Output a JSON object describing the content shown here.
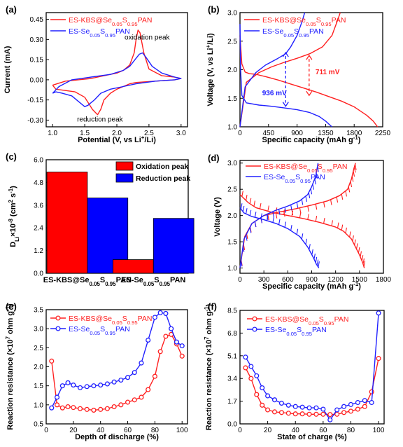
{
  "chart_data": [
    {
      "type": "line",
      "panel": "(a)",
      "xlabel_main": "Potential (V, vs Li",
      "xlabel_sup": "+",
      "xlabel_tail": "/Li)",
      "ylabel": "Current (mA)",
      "xlim": [
        0.9,
        3.1
      ],
      "ylim": [
        -0.35,
        0.5
      ],
      "xticks": [
        "1.0",
        "1.5",
        "2.0",
        "2.5",
        "3.0"
      ],
      "xtick_vals": [
        1.0,
        1.5,
        2.0,
        2.5,
        3.0
      ],
      "yticks": [
        "-0.30",
        "-0.15",
        "0.00",
        "0.15",
        "0.30",
        "0.45"
      ],
      "ytick_vals": [
        -0.3,
        -0.15,
        0.0,
        0.15,
        0.3,
        0.45
      ],
      "legend_position": "top-left",
      "annotations": {
        "oxidation": "oxidation peak",
        "reduction": "reduction peak"
      },
      "series": [
        {
          "name": "ES-KBS@Se0.05S0.95PAN",
          "label_main": "ES-KBS@Se",
          "sub1": "0.05",
          "mid": "S",
          "sub2": "0.95",
          "tail": "PAN",
          "color": "#ff2020",
          "x": [
            1.0,
            1.2,
            1.4,
            1.6,
            1.8,
            2.0,
            2.1,
            2.2,
            2.27,
            2.3,
            2.33,
            2.36,
            2.42,
            2.5,
            2.7,
            2.9,
            3.0,
            2.9,
            2.6,
            2.3,
            2.2,
            2.1,
            2.0,
            1.9,
            1.8,
            1.75,
            1.7,
            1.62,
            1.5,
            1.35,
            1.2,
            1.05,
            1.0
          ],
          "y": [
            -0.04,
            -0.01,
            0.0,
            0.01,
            0.03,
            0.05,
            0.07,
            0.11,
            0.2,
            0.3,
            0.37,
            0.35,
            0.2,
            0.08,
            0.03,
            0.02,
            0.01,
            0.0,
            -0.01,
            -0.02,
            -0.03,
            -0.05,
            -0.07,
            -0.1,
            -0.15,
            -0.22,
            -0.26,
            -0.22,
            -0.13,
            -0.09,
            -0.08,
            -0.07,
            -0.04
          ]
        },
        {
          "name": "ES-Se0.05S0.95PAN",
          "label_main": "ES-Se",
          "sub1": "0.05",
          "mid": "S",
          "sub2": "0.95",
          "tail": "PAN",
          "color": "#2020ff",
          "x": [
            1.0,
            1.1,
            1.3,
            1.6,
            1.9,
            2.1,
            2.2,
            2.3,
            2.35,
            2.4,
            2.45,
            2.55,
            2.7,
            2.9,
            3.0,
            2.9,
            2.6,
            2.3,
            2.1,
            1.9,
            1.75,
            1.65,
            1.55,
            1.5,
            1.45,
            1.3,
            1.15,
            1.05,
            1.0
          ],
          "y": [
            -0.1,
            -0.05,
            0.0,
            0.02,
            0.04,
            0.07,
            0.1,
            0.16,
            0.19,
            0.2,
            0.17,
            0.1,
            0.05,
            0.02,
            0.01,
            0.0,
            -0.01,
            -0.03,
            -0.05,
            -0.07,
            -0.1,
            -0.15,
            -0.19,
            -0.2,
            -0.18,
            -0.12,
            -0.1,
            -0.09,
            -0.1
          ]
        }
      ]
    },
    {
      "type": "line",
      "panel": "(b)",
      "xlabel_main": "Specific capacity (mAh g",
      "xlabel_sup": "-1",
      "xlabel_tail": ")",
      "ylabel_main": "Voltage (V, vs Li",
      "ylabel_sup": "+",
      "ylabel_tail": "/Li)",
      "xlim": [
        0,
        2250
      ],
      "ylim": [
        1.0,
        3.0
      ],
      "xticks": [
        "0",
        "450",
        "900",
        "1350",
        "1800",
        "2250"
      ],
      "xtick_vals": [
        0,
        450,
        900,
        1350,
        1800,
        2250
      ],
      "yticks": [
        "1.0",
        "1.5",
        "2.0",
        "2.5",
        "3.0"
      ],
      "ytick_vals": [
        1.0,
        1.5,
        2.0,
        2.5,
        3.0
      ],
      "legend_position": "top-right",
      "annotations": {
        "blue_gap": "936 mV",
        "red_gap": "711 mV"
      },
      "gaps": [
        {
          "x": 720,
          "y_low": 1.36,
          "y_high": 2.3,
          "color": "#2020ff",
          "label_x": 350,
          "label_y": 1.55
        },
        {
          "x": 1090,
          "y_low": 1.55,
          "y_high": 2.25,
          "color": "#ff2020",
          "label_x": 1190,
          "label_y": 1.92
        }
      ],
      "series": [
        {
          "name": "ES-KBS@Se0.05S0.95PAN discharge",
          "color": "#ff2020",
          "x": [
            0,
            30,
            80,
            150,
            250,
            400,
            600,
            800,
            1000,
            1200,
            1400,
            1600,
            1800,
            2000,
            2100,
            2170
          ],
          "y": [
            2.6,
            2.1,
            1.96,
            1.93,
            1.92,
            1.88,
            1.82,
            1.75,
            1.68,
            1.61,
            1.53,
            1.45,
            1.35,
            1.2,
            1.1,
            1.0
          ]
        },
        {
          "name": "ES-KBS@Se0.05S0.95PAN charge",
          "color": "#ff2020",
          "x": [
            0,
            100,
            300,
            500,
            700,
            900,
            1100,
            1300,
            1450,
            1500,
            1550,
            1580
          ],
          "y": [
            1.0,
            1.78,
            1.95,
            2.05,
            2.13,
            2.2,
            2.28,
            2.4,
            2.6,
            2.75,
            2.9,
            3.0
          ]
        },
        {
          "name": "ES-Se0.05S0.95PAN discharge",
          "color": "#2020ff",
          "x": [
            0,
            10,
            30,
            100,
            300,
            500,
            700,
            900,
            1100,
            1250,
            1350,
            1420,
            1450
          ],
          "y": [
            2.8,
            2.0,
            1.55,
            1.42,
            1.38,
            1.36,
            1.33,
            1.3,
            1.25,
            1.18,
            1.1,
            1.03,
            1.0
          ]
        },
        {
          "name": "ES-Se0.05S0.95PAN charge",
          "color": "#2020ff",
          "x": [
            0,
            80,
            250,
            400,
            600,
            720,
            800,
            900,
            980,
            1020
          ],
          "y": [
            1.0,
            1.7,
            1.95,
            2.08,
            2.2,
            2.28,
            2.4,
            2.6,
            2.85,
            3.0
          ]
        }
      ],
      "legend": [
        {
          "color": "#ff2020",
          "label_main": "ES-KBS@Se",
          "sub1": "0.05",
          "mid": "S",
          "sub2": "0.95",
          "tail": "PAN"
        },
        {
          "color": "#2020ff",
          "label_main": "ES-Se",
          "sub1": "0.05",
          "mid": "S",
          "sub2": "0.95",
          "tail": "PAN"
        }
      ]
    },
    {
      "type": "bar",
      "panel": "(c)",
      "ylabel_main": "D",
      "ylabel_sub": "Li",
      "ylabel_mid": "×10",
      "ylabel_sup": "-8",
      "ylabel_tail": " (cm",
      "ylabel_sup2": "2",
      "ylabel_tail2": " s",
      "ylabel_sup3": "-1",
      "ylabel_tail3": ")",
      "ylim": [
        0,
        6.0
      ],
      "yticks": [
        "0.0",
        "1.2",
        "2.4",
        "3.6",
        "4.8",
        "6.0"
      ],
      "ytick_vals": [
        0,
        1.2,
        2.4,
        3.6,
        4.8,
        6.0
      ],
      "categories": [
        {
          "label_main": "ES-KBS@Se",
          "sub1": "0.05",
          "mid": "S",
          "sub2": "0.95",
          "tail": "PAN"
        },
        {
          "label_main": "ES-Se",
          "sub1": "0.05",
          "mid": "S",
          "sub2": "0.95",
          "tail": "PAN"
        }
      ],
      "legend_position": "top-right",
      "series": [
        {
          "name": "Oxidation peak",
          "color": "#ff0000",
          "values": [
            5.35,
            0.72
          ]
        },
        {
          "name": "Reduction peak",
          "color": "#0000ff",
          "values": [
            3.98,
            2.9
          ]
        }
      ]
    },
    {
      "type": "line",
      "panel": "(d)",
      "xlabel_main": "Specific capacity (mAh g",
      "xlabel_sup": "-1",
      "xlabel_tail": ")",
      "ylabel": "Voltage (V)",
      "xlim": [
        0,
        1800
      ],
      "ylim": [
        0.9,
        3.05
      ],
      "xticks": [
        "0",
        "300",
        "600",
        "900",
        "1200",
        "1500",
        "1800"
      ],
      "xtick_vals": [
        0,
        300,
        600,
        900,
        1200,
        1500,
        1800
      ],
      "yticks": [
        "1.0",
        "1.5",
        "2.0",
        "2.5",
        "3.0"
      ],
      "ytick_vals": [
        1.0,
        1.5,
        2.0,
        2.5,
        3.0
      ],
      "legend_position": "top-left",
      "series": [
        {
          "name": "ES-KBS@Se0.05S0.95PAN discharge",
          "color": "#ff2020",
          "x": [
            0,
            100,
            200,
            400,
            600,
            800,
            1000,
            1200,
            1300,
            1400,
            1450,
            1500,
            1540,
            1560
          ],
          "y": [
            2.4,
            2.25,
            2.15,
            2.06,
            2.0,
            1.94,
            1.87,
            1.78,
            1.7,
            1.55,
            1.4,
            1.25,
            1.1,
            1.0
          ]
        },
        {
          "name": "ES-KBS@Se0.05S0.95PAN charge",
          "color": "#ff2020",
          "x": [
            0,
            60,
            150,
            300,
            500,
            700,
            900,
            1100,
            1250,
            1350,
            1400,
            1430,
            1450
          ],
          "y": [
            1.0,
            1.6,
            1.85,
            2.0,
            2.07,
            2.13,
            2.2,
            2.28,
            2.38,
            2.5,
            2.7,
            2.9,
            3.0
          ]
        },
        {
          "name": "ES-Se0.05S0.95PAN discharge",
          "color": "#2020ff",
          "x": [
            0,
            50,
            150,
            300,
            450,
            600,
            750,
            850,
            920,
            960,
            990
          ],
          "y": [
            2.15,
            2.05,
            1.98,
            1.92,
            1.85,
            1.75,
            1.6,
            1.4,
            1.2,
            1.07,
            1.0
          ]
        },
        {
          "name": "ES-Se0.05S0.95PAN charge",
          "color": "#2020ff",
          "x": [
            0,
            50,
            150,
            300,
            450,
            600,
            750,
            850,
            900,
            950,
            980
          ],
          "y": [
            1.0,
            1.55,
            1.85,
            2.0,
            2.1,
            2.18,
            2.28,
            2.4,
            2.55,
            2.75,
            3.0
          ]
        }
      ],
      "legend": [
        {
          "color": "#ff2020",
          "label_main": "ES-KBS@Se",
          "sub1": "0.05",
          "mid": "S",
          "sub2": "0.95",
          "tail": "PAN"
        },
        {
          "color": "#2020ff",
          "label_main": "ES-Se",
          "sub1": "0.05",
          "mid": "S",
          "sub2": "0.95",
          "tail": "PAN"
        }
      ]
    },
    {
      "type": "line",
      "panel": "(e)",
      "xlabel": "Depth of discharge (%)",
      "ylabel_main": "Reaction resistance (×10",
      "ylabel_sup": "7",
      "ylabel_tail": " ohm g",
      "ylabel_sup2": "-1",
      "ylabel_tail2": ")",
      "xlim": [
        0,
        104
      ],
      "ylim": [
        0.5,
        3.5
      ],
      "xticks": [
        "0",
        "20",
        "40",
        "60",
        "80",
        "100"
      ],
      "xtick_vals": [
        0,
        20,
        40,
        60,
        80,
        100
      ],
      "yticks": [
        "0.5",
        "1.0",
        "1.5",
        "2.0",
        "2.5",
        "3.0",
        "3.5"
      ],
      "ytick_vals": [
        0.5,
        1.0,
        1.5,
        2.0,
        2.5,
        3.0,
        3.5
      ],
      "legend_position": "top-left",
      "series": [
        {
          "name": "ES-KBS@Se0.05S0.95PAN",
          "label_main": "ES-KBS@Se",
          "sub1": "0.05",
          "mid": "S",
          "sub2": "0.95",
          "tail": "PAN",
          "color": "#ff2020",
          "x": [
            4,
            8,
            12,
            16,
            20,
            25,
            30,
            35,
            40,
            45,
            50,
            55,
            60,
            65,
            70,
            75,
            80,
            84,
            88,
            92,
            96,
            100
          ],
          "y": [
            2.15,
            1.0,
            0.92,
            0.95,
            0.93,
            0.9,
            0.88,
            0.86,
            0.88,
            0.9,
            0.95,
            1.0,
            1.07,
            1.13,
            1.2,
            1.4,
            1.75,
            2.4,
            2.8,
            2.85,
            2.6,
            2.28
          ]
        },
        {
          "name": "ES-Se0.05S0.95PAN",
          "label_main": "ES-Se",
          "sub1": "0.05",
          "mid": "S",
          "sub2": "0.95",
          "tail": "PAN",
          "color": "#2020ff",
          "x": [
            4,
            8,
            12,
            16,
            20,
            25,
            30,
            35,
            40,
            45,
            50,
            55,
            60,
            65,
            70,
            75,
            80,
            84,
            88,
            92,
            96,
            100
          ],
          "y": [
            0.92,
            1.2,
            1.5,
            1.58,
            1.52,
            1.45,
            1.48,
            1.5,
            1.52,
            1.55,
            1.6,
            1.65,
            1.72,
            1.85,
            2.1,
            2.7,
            3.3,
            3.42,
            3.4,
            3.0,
            2.65,
            2.55
          ]
        }
      ]
    },
    {
      "type": "line",
      "panel": "(f)",
      "xlabel": "State of charge (%)",
      "ylabel_main": "Reaction resistance (×10",
      "ylabel_sup": "7",
      "ylabel_tail": " ohm g",
      "ylabel_sup2": "-1",
      "ylabel_tail2": ")",
      "xlim": [
        0,
        104
      ],
      "ylim": [
        0,
        8.5
      ],
      "xticks": [
        "0",
        "20",
        "40",
        "60",
        "80",
        "100"
      ],
      "xtick_vals": [
        0,
        20,
        40,
        60,
        80,
        100
      ],
      "yticks": [
        "0.0",
        "1.7",
        "3.4",
        "5.1",
        "6.8",
        "8.5"
      ],
      "ytick_vals": [
        0,
        1.7,
        3.4,
        5.1,
        6.8,
        8.5
      ],
      "legend_position": "top-left",
      "series": [
        {
          "name": "ES-KBS@Se0.05S0.95PAN",
          "label_main": "ES-KBS@Se",
          "sub1": "0.05",
          "mid": "S",
          "sub2": "0.95",
          "tail": "PAN",
          "color": "#ff2020",
          "x": [
            4,
            8,
            12,
            16,
            20,
            25,
            30,
            35,
            40,
            45,
            50,
            55,
            60,
            65,
            70,
            75,
            80,
            85,
            90,
            95,
            100
          ],
          "y": [
            4.2,
            3.4,
            2.2,
            1.4,
            1.05,
            0.9,
            0.85,
            0.8,
            0.75,
            0.75,
            0.72,
            0.72,
            0.72,
            0.7,
            0.72,
            0.85,
            0.95,
            1.1,
            1.3,
            2.4,
            4.9
          ]
        },
        {
          "name": "ES-Se0.05S0.95PAN",
          "label_main": "ES-Se",
          "sub1": "0.05",
          "mid": "S",
          "sub2": "0.95",
          "tail": "PAN",
          "color": "#2020ff",
          "x": [
            4,
            8,
            12,
            16,
            20,
            25,
            30,
            35,
            40,
            45,
            50,
            55,
            60,
            65,
            70,
            75,
            80,
            85,
            90,
            95,
            100
          ],
          "y": [
            5.0,
            4.3,
            3.6,
            2.7,
            2.1,
            1.8,
            1.55,
            1.4,
            1.3,
            1.25,
            1.2,
            1.2,
            1.1,
            0.3,
            1.05,
            1.3,
            1.45,
            1.6,
            1.75,
            1.6,
            8.3
          ]
        }
      ]
    }
  ]
}
